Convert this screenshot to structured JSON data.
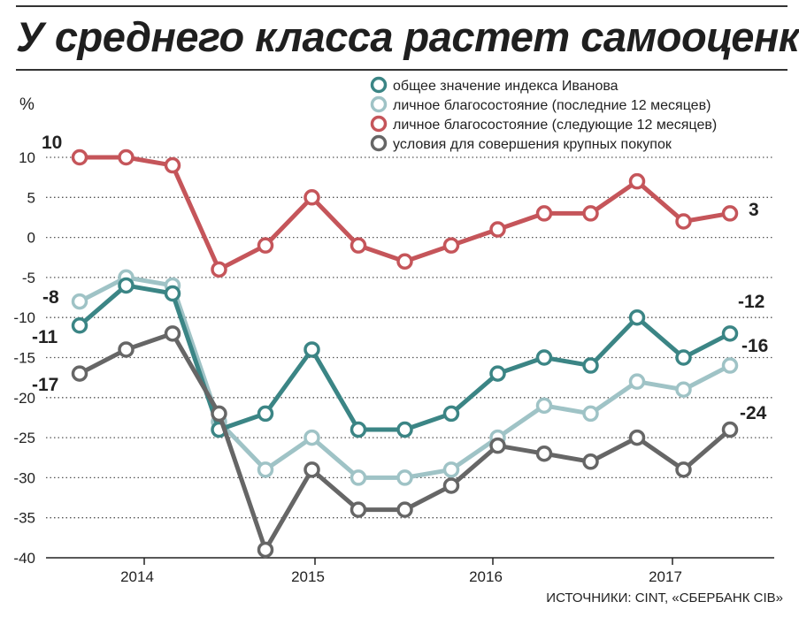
{
  "title": "У среднего класса растет самооценка",
  "source": "ИСТОЧНИКИ: CINT, «СБЕРБАНК CIB»",
  "chart_data": {
    "type": "line",
    "title": "У среднего класса растет самооценка",
    "ylabel": "%",
    "xlabel": "",
    "ylim": [
      -40,
      10
    ],
    "yticks": [
      10,
      5,
      0,
      -5,
      -10,
      -15,
      -20,
      -25,
      -30,
      -35,
      -40
    ],
    "x_labels": [
      "2014",
      "2015",
      "2016",
      "2017"
    ],
    "grid": "horizontal-dotted",
    "legend_position": "top-right",
    "series": [
      {
        "name": "общее значение индекса Иванова",
        "color": "#3b8585",
        "values": [
          -11,
          -6,
          -7,
          -24,
          -22,
          -14,
          -24,
          -24,
          -22,
          -17,
          -15,
          -16,
          -10,
          -15,
          -12
        ],
        "start_label": "-11",
        "end_label": "-12"
      },
      {
        "name": "личное благосостояние (последние 12 месяцев)",
        "color": "#9fc3c6",
        "values": [
          -8,
          -5,
          -6,
          -23,
          -29,
          -25,
          -30,
          -30,
          -29,
          -25,
          -21,
          -22,
          -18,
          -19,
          -16
        ],
        "start_label": "-8",
        "end_label": "-16"
      },
      {
        "name": "личное благосостояние (следующие 12 месяцев)",
        "color": "#c5555a",
        "values": [
          10,
          10,
          9,
          -4,
          -1,
          5,
          -1,
          -3,
          -1,
          1,
          3,
          3,
          7,
          2,
          3
        ],
        "start_label": "10",
        "end_label": "3"
      },
      {
        "name": "условия для совершения крупных покупок",
        "color": "#666666",
        "values": [
          -17,
          -14,
          -12,
          -22,
          -39,
          -29,
          -34,
          -34,
          -31,
          -26,
          -27,
          -28,
          -25,
          -29,
          -24
        ],
        "start_label": "-17",
        "end_label": "-24"
      }
    ]
  }
}
